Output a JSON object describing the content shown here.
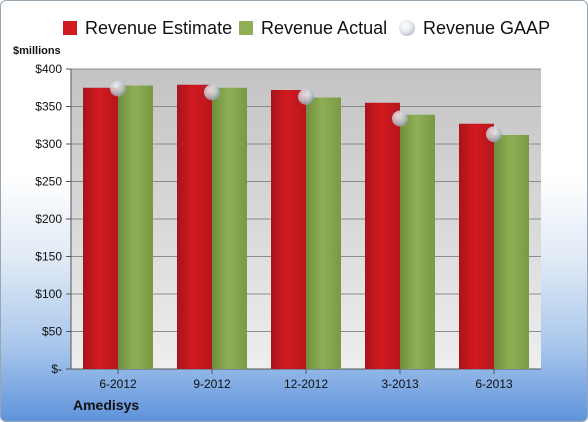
{
  "legend": {
    "estimate": "Revenue Estimate",
    "actual": "Revenue Actual",
    "gaap": "Revenue GAAP"
  },
  "unit_label": "$millions",
  "company": "Amedisys",
  "colors": {
    "estimate": "#d21a20",
    "actual": "#8faf55",
    "gaap": "#c7ccd4"
  },
  "chart_data": {
    "type": "bar",
    "categories": [
      "6-2012",
      "9-2012",
      "12-2012",
      "3-2013",
      "6-2013"
    ],
    "series": [
      {
        "name": "Revenue Estimate",
        "values": [
          375,
          379,
          372,
          355,
          327
        ]
      },
      {
        "name": "Revenue Actual",
        "values": [
          378,
          375,
          362,
          339,
          312
        ]
      },
      {
        "name": "Revenue GAAP",
        "type": "scatter",
        "values": [
          374,
          369,
          363,
          334,
          313
        ]
      }
    ],
    "ylabel": "$millions",
    "ylim": [
      0,
      400
    ],
    "yticks": [
      0,
      50,
      100,
      150,
      200,
      250,
      300,
      350,
      400
    ],
    "ytick_labels": [
      "$-",
      "$50",
      "$100",
      "$150",
      "$200",
      "$250",
      "$300",
      "$350",
      "$400"
    ],
    "grid": true,
    "legend_position": "top"
  }
}
